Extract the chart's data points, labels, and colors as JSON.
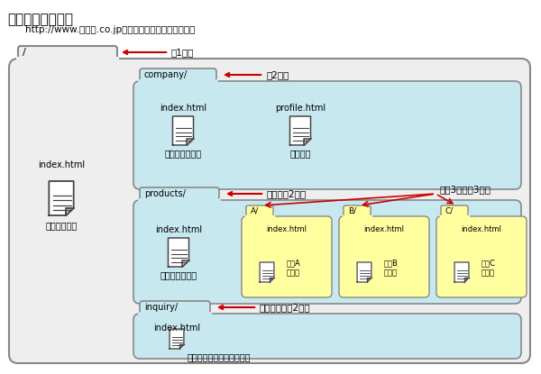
{
  "title": "サイトの階層構造",
  "subtitle": "http://www.＊＊＊.co.jpというウェブサーバ内の様子",
  "bg_color": "#ffffff",
  "folder_bg_outer": "#eeeeee",
  "folder_bg_light": "#c8e8f0",
  "folder_bg_yellow": "#ffffa0",
  "folder_border": "#888888",
  "text_color": "#000000",
  "red_color": "#cc0000",
  "ann_layer1": "第1階層",
  "ann_layer2_co": "第2階層",
  "ann_layer2_pr": "これも第2階層",
  "ann_layer3": "この3つは第3階層",
  "ann_layer2_inq": "これだって第2階層",
  "tab_label_root": "/",
  "tab_label_co": "company/",
  "tab_label_pr": "products/",
  "tab_label_inq": "inquiry/",
  "file_root": "index.html",
  "label_root": "トップページ",
  "file_co1": "index.html",
  "label_co1": "企業情報トップ",
  "file_co2": "profile.html",
  "label_co2": "会社概要",
  "file_pr1": "index.html",
  "label_pr1": "製品情報トップ",
  "sub_A_file": "index.html",
  "sub_A_label": "製品A\nトップ",
  "sub_B_file": "index.html",
  "sub_B_label": "製品B\nトップ",
  "sub_C_file": "index.html",
  "sub_C_label": "製品C\nトップ",
  "sub_A_name": "A/",
  "sub_B_name": "B/",
  "sub_C_name": "C/",
  "file_inq": "index.html",
  "label_inq": "お問い合わせ（フォーム）"
}
